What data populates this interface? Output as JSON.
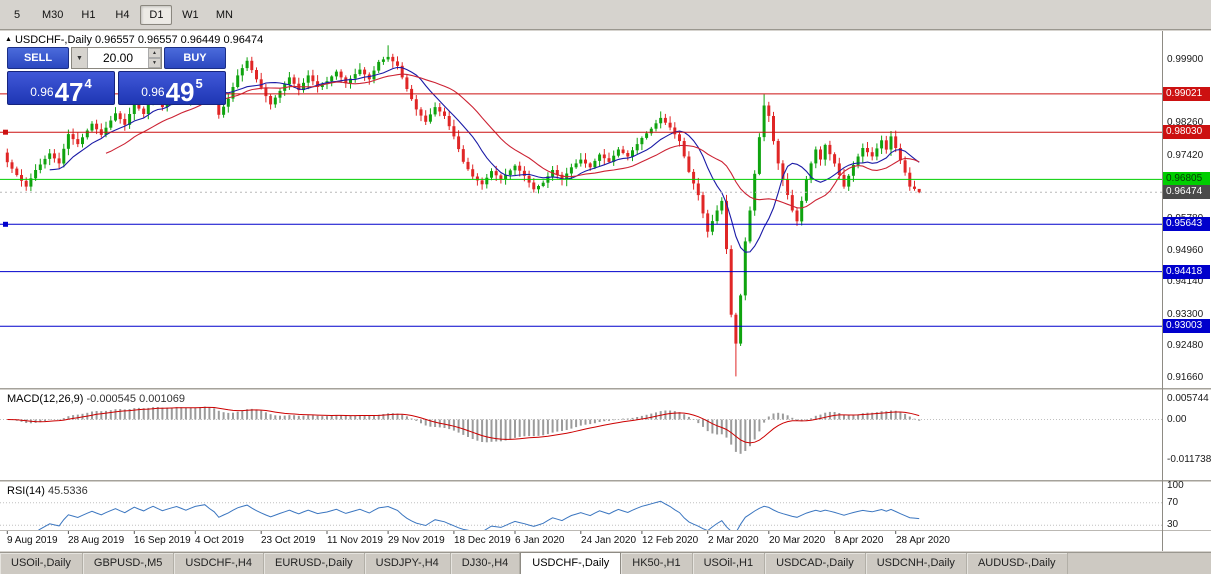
{
  "toolbar": {
    "timeframes": [
      {
        "label": "5",
        "active": false
      },
      {
        "label": "M30",
        "active": false
      },
      {
        "label": "H1",
        "active": false
      },
      {
        "label": "H4",
        "active": false
      },
      {
        "label": "D1",
        "active": true
      },
      {
        "label": "W1",
        "active": false
      },
      {
        "label": "MN",
        "active": false
      }
    ]
  },
  "icons": {
    "collapse": "▲",
    "dropdown": "▼",
    "spin_up": "▲",
    "spin_down": "▼"
  },
  "chart": {
    "title": "USDCHF-,Daily",
    "ohlc_text": "0.96557 0.96557 0.96449 0.96474"
  },
  "one_click": {
    "sell_label": "SELL",
    "buy_label": "BUY",
    "volume": "20.00",
    "sell_price": {
      "base": "0.96",
      "big": "47",
      "sup": "4"
    },
    "buy_price": {
      "base": "0.96",
      "big": "49",
      "sup": "5"
    }
  },
  "colors": {
    "up": "#0fa30f",
    "down": "#e02626",
    "ma_fast": "#1a1aa6",
    "ma_slow": "#cc2233",
    "macd_hist": "#9b9b9b",
    "macd_signal": "#cc0000",
    "rsi_line": "#3b76c0",
    "dotted_level": "#c0c0c0",
    "bid_line": "#b8b8b8"
  },
  "price_axis": {
    "labels": [
      "0.99900",
      "0.98260",
      "0.97420",
      "0.95780",
      "0.94960",
      "0.94140",
      "0.93300",
      "0.92480",
      "0.91660"
    ]
  },
  "levels": [
    {
      "price": 0.99021,
      "label": "0.99021",
      "color": "#cc1111",
      "tag_fg": "#ffffff",
      "left_marker": false
    },
    {
      "price": 0.9803,
      "label": "0.98030",
      "color": "#cc1111",
      "tag_fg": "#ffffff",
      "left_marker": true
    },
    {
      "price": 0.96805,
      "label": "0.96805",
      "color": "#00ce00",
      "tag_fg": "#073807",
      "left_marker": false
    },
    {
      "price": 0.95643,
      "label": "0.95643",
      "color": "#0000cc",
      "tag_fg": "#ffffff",
      "left_marker": true
    },
    {
      "price": 0.94418,
      "label": "0.94418",
      "color": "#0000cc",
      "tag_fg": "#ffffff",
      "left_marker": false
    },
    {
      "price": 0.93003,
      "label": "0.93003",
      "color": "#0000cc",
      "tag_fg": "#ffffff",
      "left_marker": false
    }
  ],
  "current_price": {
    "label": "0.96474",
    "bg": "#4a4a4a",
    "fg": "#ffffff"
  },
  "indicators": {
    "macd": {
      "label": "MACD(12,26,9)",
      "values_text": "-0.000545 0.001069",
      "axis": [
        "0.005744",
        "0.00",
        "-0.011738"
      ],
      "params": [
        12,
        26,
        9
      ]
    },
    "rsi": {
      "label": "RSI(14)",
      "value_text": "45.5336",
      "axis": [
        100,
        70,
        30
      ],
      "period": 14
    }
  },
  "chart_data": {
    "type": "candlestick",
    "symbol": "USDCHF-",
    "timeframe": "Daily",
    "ylim": [
      0.914,
      1.0063
    ],
    "candles_count": 195,
    "seed": 20200428,
    "moving_averages": [
      {
        "period": 10,
        "color_key": "ma_fast"
      },
      {
        "period": 22,
        "color_key": "ma_slow"
      }
    ],
    "x_labels": [
      "9 Aug 2019",
      "28 Aug 2019",
      "16 Sep 2019",
      "4 Oct 2019",
      "23 Oct 2019",
      "11 Nov 2019",
      "29 Nov 2019",
      "18 Dec 2019",
      "6 Jan 2020",
      "24 Jan 2020",
      "12 Feb 2020",
      "2 Mar 2020",
      "20 Mar 2020",
      "8 Apr 2020",
      "28 Apr 2020"
    ],
    "x_label_indices": [
      0,
      13,
      27,
      40,
      54,
      68,
      81,
      95,
      108,
      122,
      135,
      149,
      162,
      176,
      189
    ],
    "close_waypoints": [
      [
        0,
        0.9725
      ],
      [
        2,
        0.9692
      ],
      [
        4,
        0.9662
      ],
      [
        6,
        0.9705
      ],
      [
        9,
        0.9748
      ],
      [
        11,
        0.9722
      ],
      [
        13,
        0.9798
      ],
      [
        15,
        0.9772
      ],
      [
        18,
        0.9825
      ],
      [
        20,
        0.9796
      ],
      [
        23,
        0.9852
      ],
      [
        25,
        0.9822
      ],
      [
        27,
        0.9878
      ],
      [
        29,
        0.985
      ],
      [
        31,
        0.9902
      ],
      [
        33,
        0.9868
      ],
      [
        36,
        0.9915
      ],
      [
        38,
        0.9888
      ],
      [
        40,
        0.993
      ],
      [
        42,
        0.995
      ],
      [
        44,
        0.99
      ],
      [
        45,
        0.9848
      ],
      [
        47,
        0.989
      ],
      [
        49,
        0.995
      ],
      [
        51,
        0.9988
      ],
      [
        53,
        0.994
      ],
      [
        56,
        0.9875
      ],
      [
        58,
        0.991
      ],
      [
        60,
        0.9945
      ],
      [
        62,
        0.9912
      ],
      [
        64,
        0.995
      ],
      [
        66,
        0.992
      ],
      [
        68,
        0.9935
      ],
      [
        70,
        0.996
      ],
      [
        72,
        0.993
      ],
      [
        75,
        0.9965
      ],
      [
        77,
        0.994
      ],
      [
        79,
        0.9985
      ],
      [
        81,
        0.9998
      ],
      [
        83,
        0.9975
      ],
      [
        85,
        0.9915
      ],
      [
        87,
        0.9862
      ],
      [
        89,
        0.983
      ],
      [
        91,
        0.9868
      ],
      [
        93,
        0.9845
      ],
      [
        95,
        0.9792
      ],
      [
        97,
        0.9726
      ],
      [
        99,
        0.9688
      ],
      [
        101,
        0.9668
      ],
      [
        103,
        0.9702
      ],
      [
        105,
        0.968
      ],
      [
        108,
        0.9716
      ],
      [
        110,
        0.969
      ],
      [
        112,
        0.9655
      ],
      [
        114,
        0.9672
      ],
      [
        116,
        0.9705
      ],
      [
        118,
        0.968
      ],
      [
        120,
        0.9712
      ],
      [
        122,
        0.9732
      ],
      [
        124,
        0.9712
      ],
      [
        126,
        0.9745
      ],
      [
        128,
        0.9726
      ],
      [
        130,
        0.9758
      ],
      [
        132,
        0.974
      ],
      [
        135,
        0.9788
      ],
      [
        137,
        0.9812
      ],
      [
        139,
        0.984
      ],
      [
        141,
        0.9815
      ],
      [
        143,
        0.978
      ],
      [
        145,
        0.97
      ],
      [
        147,
        0.964
      ],
      [
        149,
        0.9545
      ],
      [
        151,
        0.96
      ],
      [
        152,
        0.9625
      ],
      [
        153,
        0.95
      ],
      [
        154,
        0.933
      ],
      [
        155,
        0.9255
      ],
      [
        156,
        0.938
      ],
      [
        157,
        0.952
      ],
      [
        158,
        0.96
      ],
      [
        159,
        0.9695
      ],
      [
        160,
        0.979
      ],
      [
        161,
        0.9872
      ],
      [
        162,
        0.9845
      ],
      [
        163,
        0.978
      ],
      [
        164,
        0.9722
      ],
      [
        165,
        0.968
      ],
      [
        166,
        0.964
      ],
      [
        167,
        0.96
      ],
      [
        168,
        0.9572
      ],
      [
        169,
        0.9625
      ],
      [
        170,
        0.968
      ],
      [
        171,
        0.9722
      ],
      [
        172,
        0.9758
      ],
      [
        173,
        0.9732
      ],
      [
        174,
        0.977
      ],
      [
        176,
        0.9722
      ],
      [
        177,
        0.9692
      ],
      [
        178,
        0.9662
      ],
      [
        180,
        0.9718
      ],
      [
        182,
        0.9762
      ],
      [
        184,
        0.974
      ],
      [
        186,
        0.9782
      ],
      [
        187,
        0.9758
      ],
      [
        188,
        0.9792
      ],
      [
        189,
        0.9762
      ],
      [
        190,
        0.973
      ],
      [
        191,
        0.9698
      ],
      [
        192,
        0.9662
      ],
      [
        193,
        0.9656
      ],
      [
        194,
        0.96474
      ]
    ],
    "wick_overrides": [
      {
        "i": 45,
        "low": 0.9838
      },
      {
        "i": 81,
        "high": 1.0028
      },
      {
        "i": 155,
        "low": 0.917
      },
      {
        "i": 161,
        "high": 0.9901
      },
      {
        "i": 188,
        "high": 0.9806
      },
      {
        "i": 194,
        "high": 0.96557,
        "low": 0.96449
      }
    ]
  },
  "tabs": [
    {
      "label": "USOil-,Daily",
      "active": false
    },
    {
      "label": "GBPUSD-,M5",
      "active": false
    },
    {
      "label": "USDCHF-,H4",
      "active": false
    },
    {
      "label": "EURUSD-,Daily",
      "active": false
    },
    {
      "label": "USDJPY-,H4",
      "active": false
    },
    {
      "label": "DJ30-,H4",
      "active": false
    },
    {
      "label": "USDCHF-,Daily",
      "active": true
    },
    {
      "label": "HK50-,H1",
      "active": false
    },
    {
      "label": "USOil-,H1",
      "active": false
    },
    {
      "label": "USDCAD-,Daily",
      "active": false
    },
    {
      "label": "USDCNH-,Daily",
      "active": false
    },
    {
      "label": "AUDUSD-,Daily",
      "active": false
    }
  ]
}
